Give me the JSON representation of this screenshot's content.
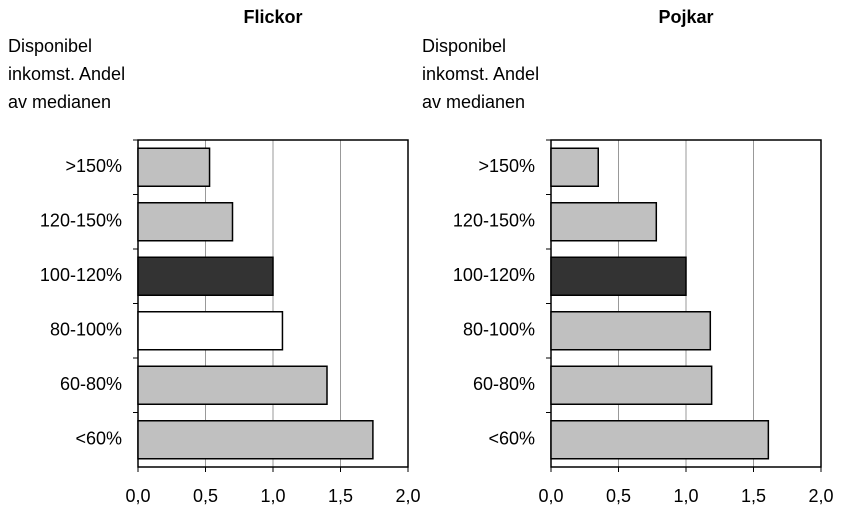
{
  "chart_data": [
    {
      "type": "barh",
      "title": "Flickor",
      "ylabel_lines": [
        "Disponibel",
        "inkomst. Andel",
        "av medianen"
      ],
      "categories": [
        ">150%",
        "120-150%",
        "100-120%",
        "80-100%",
        "60-80%",
        "<60%"
      ],
      "values": [
        0.53,
        0.7,
        1.0,
        1.07,
        1.4,
        1.74
      ],
      "colors": [
        "#c0c0c0",
        "#c0c0c0",
        "#333333",
        "#ffffff",
        "#c0c0c0",
        "#c0c0c0"
      ],
      "xlim": [
        0,
        2
      ],
      "xticks": [
        {
          "value": 0,
          "label": "0,0"
        },
        {
          "value": 0.5,
          "label": "0,5"
        },
        {
          "value": 1,
          "label": "1,0"
        },
        {
          "value": 1.5,
          "label": "1,5"
        },
        {
          "value": 2,
          "label": "2,0"
        }
      ],
      "grid": true
    },
    {
      "type": "barh",
      "title": "Pojkar",
      "ylabel_lines": [
        "Disponibel",
        "inkomst. Andel",
        "av medianen"
      ],
      "categories": [
        ">150%",
        "120-150%",
        "100-120%",
        "80-100%",
        "60-80%",
        "<60%"
      ],
      "values": [
        0.35,
        0.78,
        1.0,
        1.18,
        1.19,
        1.61
      ],
      "colors": [
        "#c0c0c0",
        "#c0c0c0",
        "#333333",
        "#c0c0c0",
        "#c0c0c0",
        "#c0c0c0"
      ],
      "xlim": [
        0,
        2
      ],
      "xticks": [
        {
          "value": 0,
          "label": "0,0"
        },
        {
          "value": 0.5,
          "label": "0,5"
        },
        {
          "value": 1,
          "label": "1,0"
        },
        {
          "value": 1.5,
          "label": "1,5"
        },
        {
          "value": 2,
          "label": "2,0"
        }
      ],
      "grid": true
    }
  ]
}
